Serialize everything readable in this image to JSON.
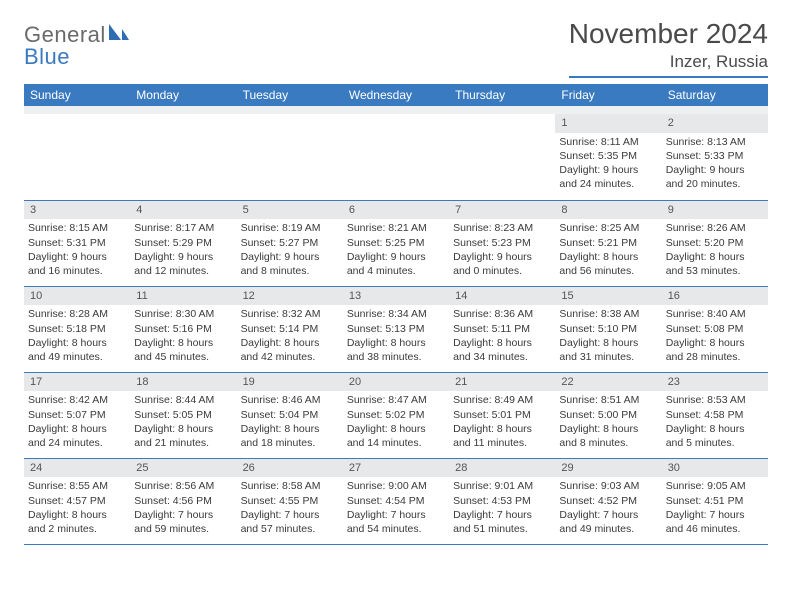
{
  "logo": {
    "line1": "General",
    "line2": "Blue"
  },
  "title": "November 2024",
  "location": "Inzer, Russia",
  "colors": {
    "accent": "#3a7ac0",
    "header_bg": "#3a7ac0",
    "header_text": "#ffffff",
    "daynum_bg": "#e6e8ea",
    "body_text": "#3a3a3a",
    "page_bg": "#ffffff"
  },
  "weekdays": [
    "Sunday",
    "Monday",
    "Tuesday",
    "Wednesday",
    "Thursday",
    "Friday",
    "Saturday"
  ],
  "weeks": [
    [
      null,
      null,
      null,
      null,
      null,
      {
        "n": "1",
        "sr": "Sunrise: 8:11 AM",
        "ss": "Sunset: 5:35 PM",
        "d1": "Daylight: 9 hours",
        "d2": "and 24 minutes."
      },
      {
        "n": "2",
        "sr": "Sunrise: 8:13 AM",
        "ss": "Sunset: 5:33 PM",
        "d1": "Daylight: 9 hours",
        "d2": "and 20 minutes."
      }
    ],
    [
      {
        "n": "3",
        "sr": "Sunrise: 8:15 AM",
        "ss": "Sunset: 5:31 PM",
        "d1": "Daylight: 9 hours",
        "d2": "and 16 minutes."
      },
      {
        "n": "4",
        "sr": "Sunrise: 8:17 AM",
        "ss": "Sunset: 5:29 PM",
        "d1": "Daylight: 9 hours",
        "d2": "and 12 minutes."
      },
      {
        "n": "5",
        "sr": "Sunrise: 8:19 AM",
        "ss": "Sunset: 5:27 PM",
        "d1": "Daylight: 9 hours",
        "d2": "and 8 minutes."
      },
      {
        "n": "6",
        "sr": "Sunrise: 8:21 AM",
        "ss": "Sunset: 5:25 PM",
        "d1": "Daylight: 9 hours",
        "d2": "and 4 minutes."
      },
      {
        "n": "7",
        "sr": "Sunrise: 8:23 AM",
        "ss": "Sunset: 5:23 PM",
        "d1": "Daylight: 9 hours",
        "d2": "and 0 minutes."
      },
      {
        "n": "8",
        "sr": "Sunrise: 8:25 AM",
        "ss": "Sunset: 5:21 PM",
        "d1": "Daylight: 8 hours",
        "d2": "and 56 minutes."
      },
      {
        "n": "9",
        "sr": "Sunrise: 8:26 AM",
        "ss": "Sunset: 5:20 PM",
        "d1": "Daylight: 8 hours",
        "d2": "and 53 minutes."
      }
    ],
    [
      {
        "n": "10",
        "sr": "Sunrise: 8:28 AM",
        "ss": "Sunset: 5:18 PM",
        "d1": "Daylight: 8 hours",
        "d2": "and 49 minutes."
      },
      {
        "n": "11",
        "sr": "Sunrise: 8:30 AM",
        "ss": "Sunset: 5:16 PM",
        "d1": "Daylight: 8 hours",
        "d2": "and 45 minutes."
      },
      {
        "n": "12",
        "sr": "Sunrise: 8:32 AM",
        "ss": "Sunset: 5:14 PM",
        "d1": "Daylight: 8 hours",
        "d2": "and 42 minutes."
      },
      {
        "n": "13",
        "sr": "Sunrise: 8:34 AM",
        "ss": "Sunset: 5:13 PM",
        "d1": "Daylight: 8 hours",
        "d2": "and 38 minutes."
      },
      {
        "n": "14",
        "sr": "Sunrise: 8:36 AM",
        "ss": "Sunset: 5:11 PM",
        "d1": "Daylight: 8 hours",
        "d2": "and 34 minutes."
      },
      {
        "n": "15",
        "sr": "Sunrise: 8:38 AM",
        "ss": "Sunset: 5:10 PM",
        "d1": "Daylight: 8 hours",
        "d2": "and 31 minutes."
      },
      {
        "n": "16",
        "sr": "Sunrise: 8:40 AM",
        "ss": "Sunset: 5:08 PM",
        "d1": "Daylight: 8 hours",
        "d2": "and 28 minutes."
      }
    ],
    [
      {
        "n": "17",
        "sr": "Sunrise: 8:42 AM",
        "ss": "Sunset: 5:07 PM",
        "d1": "Daylight: 8 hours",
        "d2": "and 24 minutes."
      },
      {
        "n": "18",
        "sr": "Sunrise: 8:44 AM",
        "ss": "Sunset: 5:05 PM",
        "d1": "Daylight: 8 hours",
        "d2": "and 21 minutes."
      },
      {
        "n": "19",
        "sr": "Sunrise: 8:46 AM",
        "ss": "Sunset: 5:04 PM",
        "d1": "Daylight: 8 hours",
        "d2": "and 18 minutes."
      },
      {
        "n": "20",
        "sr": "Sunrise: 8:47 AM",
        "ss": "Sunset: 5:02 PM",
        "d1": "Daylight: 8 hours",
        "d2": "and 14 minutes."
      },
      {
        "n": "21",
        "sr": "Sunrise: 8:49 AM",
        "ss": "Sunset: 5:01 PM",
        "d1": "Daylight: 8 hours",
        "d2": "and 11 minutes."
      },
      {
        "n": "22",
        "sr": "Sunrise: 8:51 AM",
        "ss": "Sunset: 5:00 PM",
        "d1": "Daylight: 8 hours",
        "d2": "and 8 minutes."
      },
      {
        "n": "23",
        "sr": "Sunrise: 8:53 AM",
        "ss": "Sunset: 4:58 PM",
        "d1": "Daylight: 8 hours",
        "d2": "and 5 minutes."
      }
    ],
    [
      {
        "n": "24",
        "sr": "Sunrise: 8:55 AM",
        "ss": "Sunset: 4:57 PM",
        "d1": "Daylight: 8 hours",
        "d2": "and 2 minutes."
      },
      {
        "n": "25",
        "sr": "Sunrise: 8:56 AM",
        "ss": "Sunset: 4:56 PM",
        "d1": "Daylight: 7 hours",
        "d2": "and 59 minutes."
      },
      {
        "n": "26",
        "sr": "Sunrise: 8:58 AM",
        "ss": "Sunset: 4:55 PM",
        "d1": "Daylight: 7 hours",
        "d2": "and 57 minutes."
      },
      {
        "n": "27",
        "sr": "Sunrise: 9:00 AM",
        "ss": "Sunset: 4:54 PM",
        "d1": "Daylight: 7 hours",
        "d2": "and 54 minutes."
      },
      {
        "n": "28",
        "sr": "Sunrise: 9:01 AM",
        "ss": "Sunset: 4:53 PM",
        "d1": "Daylight: 7 hours",
        "d2": "and 51 minutes."
      },
      {
        "n": "29",
        "sr": "Sunrise: 9:03 AM",
        "ss": "Sunset: 4:52 PM",
        "d1": "Daylight: 7 hours",
        "d2": "and 49 minutes."
      },
      {
        "n": "30",
        "sr": "Sunrise: 9:05 AM",
        "ss": "Sunset: 4:51 PM",
        "d1": "Daylight: 7 hours",
        "d2": "and 46 minutes."
      }
    ]
  ]
}
